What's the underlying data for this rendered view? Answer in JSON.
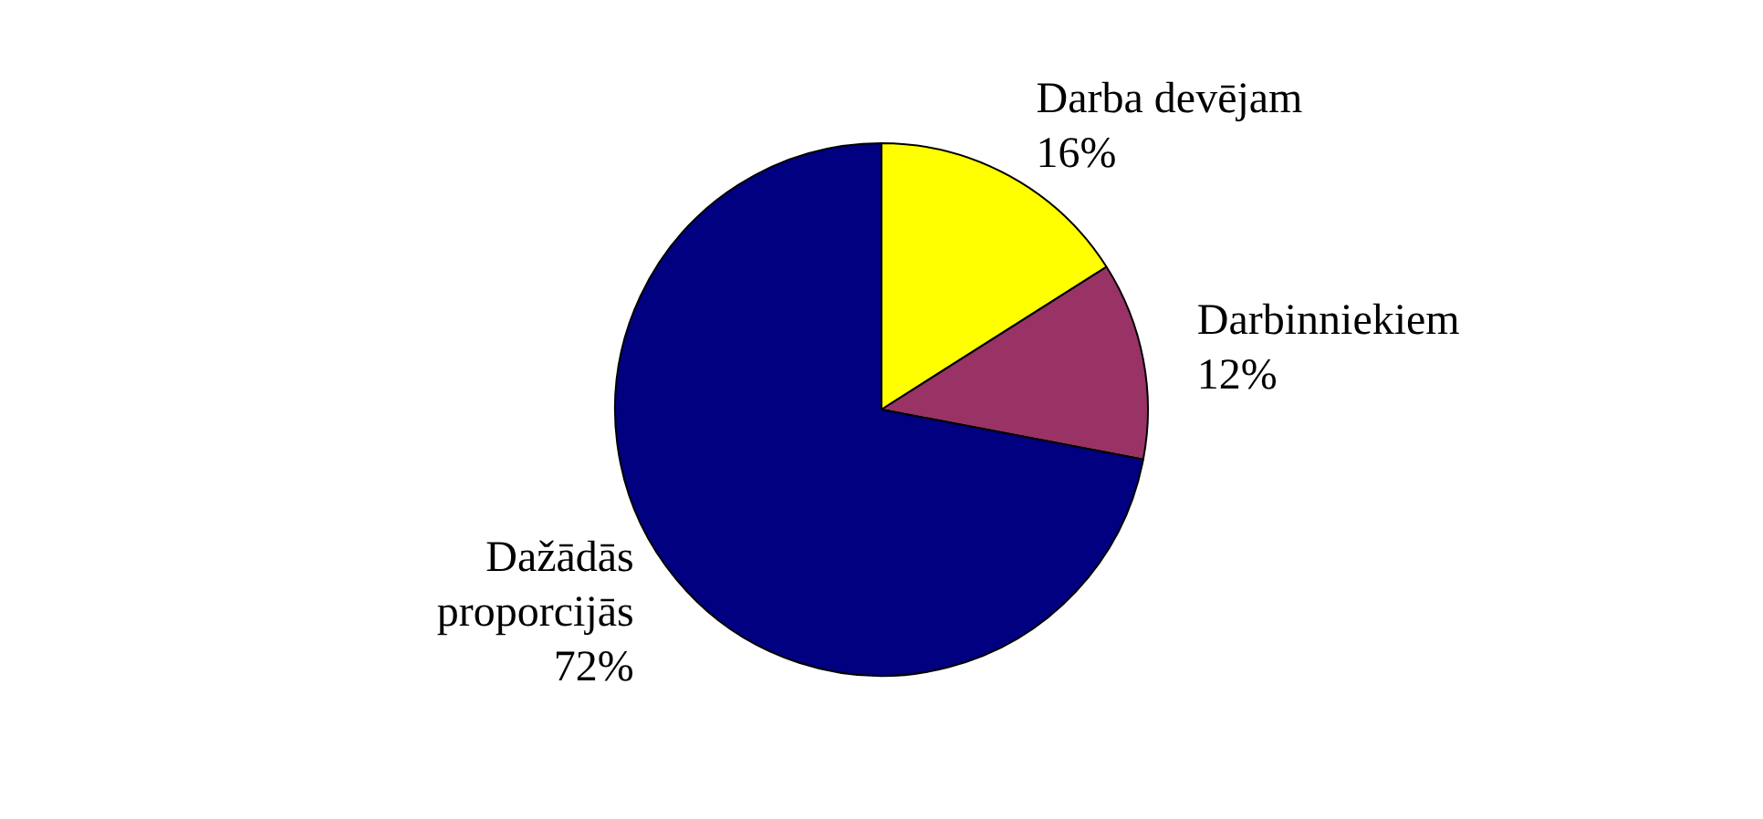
{
  "chart_data": {
    "type": "pie",
    "categories": [
      "Darba devējam",
      "Darbinniekiem",
      "Dažādās proporcijās"
    ],
    "values": [
      16,
      12,
      72
    ],
    "value_labels": [
      "16%",
      "12%",
      "72%"
    ],
    "colors": [
      "#ffff00",
      "#993366",
      "#000080"
    ],
    "legend": false
  }
}
